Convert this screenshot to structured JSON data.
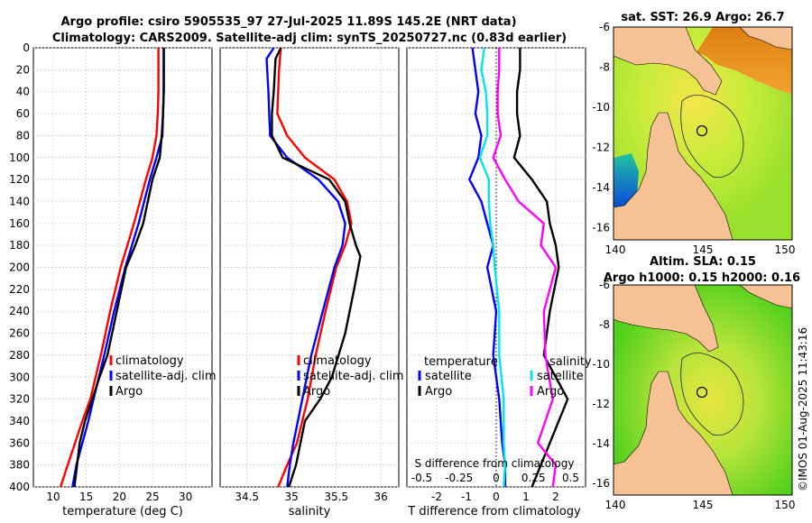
{
  "header": {
    "line1": "Argo profile: csiro 5905535_97 27-Jul-2025 11.89S 145.2E (NRT data)",
    "line2": "Climatology: CARS2009. Satellite-adj clim: synTS_20250727.nc (0.83d earlier)"
  },
  "map_top": {
    "title": "sat. SST: 26.9  Argo: 26.7",
    "xticks": [
      "140",
      "145",
      "150"
    ],
    "yticks": [
      "-6",
      "-8",
      "-10",
      "-12",
      "-14",
      "-16"
    ]
  },
  "map_bottom": {
    "title1": "Altim. SLA: 0.15",
    "title2": "Argo h1000: 0.15 h2000: 0.16",
    "xticks": [
      "140",
      "145",
      "150"
    ],
    "yticks": [
      "-6",
      "-8",
      "-10",
      "-12",
      "-14",
      "-16"
    ]
  },
  "footer": {
    "stamp": "©IMOS 01-Aug-2025 11:43:16"
  },
  "colors": {
    "climatology": "#ff0000",
    "satellite": "#0000ff",
    "argo": "#000000",
    "sat_t_diff": "#00e5ee",
    "sal_diff": "#ff00ff"
  },
  "chart_data": [
    {
      "type": "line",
      "name": "temperature",
      "xlabel": "temperature (deg C)",
      "ylabel": "",
      "xlim": [
        7,
        34
      ],
      "ylim": [
        400,
        0
      ],
      "xticks": [
        10,
        15,
        20,
        25,
        30
      ],
      "yticks": [
        0,
        20,
        40,
        60,
        80,
        100,
        120,
        140,
        160,
        180,
        200,
        220,
        240,
        260,
        280,
        300,
        320,
        340,
        360,
        380,
        400
      ],
      "legend": [
        "climatology",
        "satellite-adj. clim",
        "Argo"
      ],
      "series": [
        {
          "name": "climatology",
          "x": [
            25.9,
            25.9,
            25.8,
            25.6,
            25.0,
            24.0,
            22.2,
            20.2,
            18.6,
            17.2,
            15.6,
            14.4,
            13.3,
            12.2,
            11.1
          ],
          "y": [
            0,
            40,
            60,
            80,
            100,
            120,
            160,
            200,
            240,
            280,
            320,
            340,
            360,
            380,
            400
          ]
        },
        {
          "name": "satellite-adj. clim",
          "x": [
            26.7,
            26.7,
            26.6,
            26.5,
            25.6,
            24.6,
            22.9,
            20.9,
            19.2,
            17.7,
            16.1,
            15.3,
            14.4,
            13.5,
            12.9
          ],
          "y": [
            0,
            40,
            60,
            80,
            100,
            120,
            160,
            200,
            240,
            280,
            320,
            340,
            360,
            380,
            400
          ]
        },
        {
          "name": "Argo",
          "x": [
            26.7,
            26.7,
            26.6,
            26.4,
            26.1,
            25.0,
            23.6,
            22.4,
            21.0,
            19.6,
            18.2,
            17.0,
            15.9,
            14.8,
            14.0,
            13.2
          ],
          "y": [
            0,
            40,
            60,
            80,
            100,
            120,
            160,
            180,
            200,
            240,
            280,
            300,
            320,
            340,
            360,
            400
          ]
        }
      ]
    },
    {
      "type": "line",
      "name": "salinity",
      "xlabel": "salinity",
      "xlim": [
        34.2,
        36.2
      ],
      "ylim": [
        400,
        0
      ],
      "xticks": [
        34.5,
        35,
        35.5,
        36
      ],
      "legend": [
        "climatology",
        "satellite-adj. clim",
        "Argo"
      ],
      "series": [
        {
          "name": "climatology",
          "x": [
            34.88,
            34.86,
            34.85,
            34.84,
            34.95,
            35.15,
            35.48,
            35.62,
            35.67,
            35.6,
            35.5,
            35.38,
            35.27,
            35.18,
            35.06,
            34.95,
            34.85
          ],
          "y": [
            0,
            20,
            40,
            60,
            80,
            100,
            120,
            140,
            160,
            180,
            200,
            240,
            280,
            320,
            360,
            380,
            400
          ]
        },
        {
          "name": "satellite-adj. clim",
          "x": [
            34.8,
            34.72,
            34.74,
            34.75,
            34.76,
            34.95,
            35.3,
            35.52,
            35.6,
            35.57,
            35.48,
            35.35,
            35.22,
            35.12,
            35.02,
            34.98,
            34.95
          ],
          "y": [
            0,
            10,
            40,
            60,
            80,
            100,
            120,
            140,
            160,
            180,
            200,
            240,
            280,
            320,
            360,
            380,
            400
          ]
        },
        {
          "name": "Argo",
          "x": [
            34.88,
            34.82,
            34.8,
            34.78,
            34.78,
            34.9,
            35.42,
            35.6,
            35.65,
            35.72,
            35.77,
            35.7,
            35.6,
            35.45,
            35.32,
            35.15,
            35.05,
            34.97
          ],
          "y": [
            0,
            10,
            40,
            60,
            80,
            100,
            120,
            140,
            160,
            180,
            190,
            220,
            260,
            300,
            320,
            340,
            380,
            400
          ]
        }
      ]
    },
    {
      "type": "line",
      "name": "difference",
      "xlabel": "T difference from climatology",
      "xlabel_top": "S difference from climatology",
      "xlim": [
        -3,
        3
      ],
      "ylim": [
        400,
        0
      ],
      "xticks": [
        -2,
        -1,
        0,
        1,
        2
      ],
      "sticks": [
        -0.5,
        -0.25,
        0,
        0.25,
        0.5
      ],
      "stick_labels": [
        "-0.5",
        "-0.25",
        "0",
        "0.25",
        "0.5"
      ],
      "legend_left": {
        "title": "temperature",
        "items": [
          "satellite",
          "Argo"
        ]
      },
      "legend_right": {
        "title": "salinity",
        "items": [
          "satellite",
          "Argo"
        ]
      },
      "series": [
        {
          "name": "T satellite",
          "x": [
            -0.8,
            -0.7,
            -0.6,
            -0.7,
            -0.5,
            -0.6,
            -0.9,
            -0.5,
            -0.3,
            -0.1,
            -0.3,
            0.0,
            -0.1,
            0.1,
            0.2,
            0.3,
            0.3
          ],
          "y": [
            0,
            20,
            40,
            60,
            80,
            100,
            120,
            140,
            160,
            180,
            200,
            240,
            280,
            320,
            360,
            380,
            400
          ]
        },
        {
          "name": "T Argo",
          "x": [
            0.8,
            0.8,
            0.7,
            0.7,
            0.8,
            0.6,
            1.2,
            1.7,
            1.8,
            2.0,
            2.1,
            1.8,
            1.6,
            2.4,
            2.1,
            1.5,
            1.2
          ],
          "y": [
            0,
            20,
            40,
            60,
            80,
            100,
            120,
            140,
            160,
            180,
            200,
            240,
            280,
            320,
            340,
            380,
            400
          ]
        },
        {
          "name": "S satellite",
          "x": [
            -0.08,
            -0.1,
            -0.07,
            -0.06,
            -0.06,
            -0.11,
            -0.05,
            -0.05,
            -0.04,
            -0.02,
            -0.01,
            0.02,
            0.02,
            0.05,
            0.05,
            0.06,
            0.05
          ],
          "y": [
            0,
            20,
            40,
            60,
            80,
            100,
            120,
            140,
            160,
            180,
            200,
            240,
            280,
            320,
            360,
            380,
            400
          ]
        },
        {
          "name": "S Argo",
          "x": [
            0.02,
            0.02,
            0.01,
            0.01,
            0.03,
            -0.02,
            0.06,
            0.15,
            0.32,
            0.3,
            0.4,
            0.32,
            0.33,
            0.38,
            0.28,
            0.4,
            0.38
          ],
          "y": [
            0,
            20,
            40,
            60,
            80,
            100,
            120,
            140,
            160,
            180,
            200,
            240,
            280,
            320,
            360,
            380,
            400
          ]
        }
      ]
    }
  ]
}
